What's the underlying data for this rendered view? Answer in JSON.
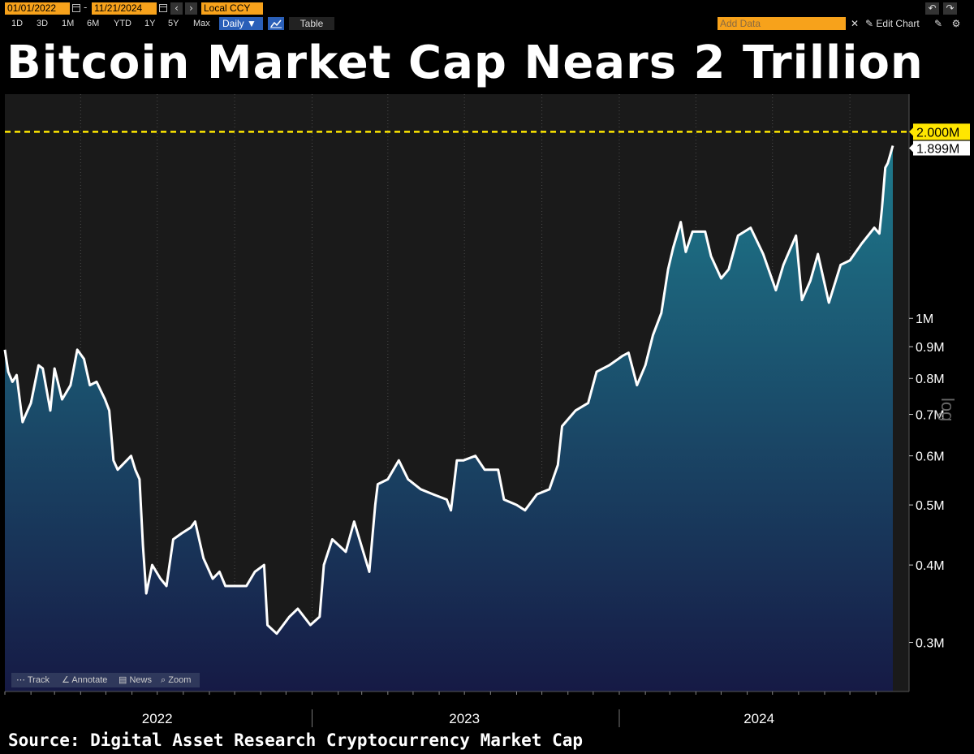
{
  "toolbar": {
    "start_date": "01/01/2022",
    "end_date": "11/21/2024",
    "date_separator": "-",
    "currency": "Local CCY",
    "ranges": [
      "1D",
      "3D",
      "1M",
      "6M",
      "YTD",
      "1Y",
      "5Y",
      "Max"
    ],
    "frequency": "Daily ▼",
    "table_label": "Table",
    "add_data_placeholder": "Add Data",
    "edit_chart_label": "Edit Chart",
    "prev_icon": "‹",
    "next_icon": "›",
    "undo_icon": "↶",
    "redo_icon": "↷",
    "pencil_icon": "✎",
    "gear_icon": "⚙"
  },
  "headline": "Bitcoin Market Cap Nears 2 Trillion",
  "bottom_tools": [
    "Track",
    "Annotate",
    "News",
    "Zoom"
  ],
  "source": "Source: Digital Asset Research Cryptocurrency Market Cap",
  "colors": {
    "line": "#ffffff",
    "fill_top": "#1e7a8c",
    "fill_bottom": "#161a45",
    "reference_line": "#ffe600",
    "toolbar_accent": "#f7a21b",
    "plot_bg": "#1a1a1a"
  },
  "chart_data": {
    "type": "area",
    "title": "Bitcoin Market Cap Nears 2 Trillion",
    "y_scale": "log",
    "ylim": [
      0.25,
      2.3
    ],
    "y_ticks": [
      {
        "value": 1.0,
        "label": "1M"
      },
      {
        "value": 0.9,
        "label": "0.9M"
      },
      {
        "value": 0.8,
        "label": "0.8M"
      },
      {
        "value": 0.7,
        "label": "0.7M"
      },
      {
        "value": 0.6,
        "label": "0.6M"
      },
      {
        "value": 0.5,
        "label": "0.5M"
      },
      {
        "value": 0.4,
        "label": "0.4M"
      },
      {
        "value": 0.3,
        "label": "0.3M"
      }
    ],
    "xlim": [
      "2022-01-01",
      "2024-11-21"
    ],
    "x_labels": [
      {
        "date": "2022-07-01",
        "label": "2022"
      },
      {
        "date": "2023-07-01",
        "label": "2023"
      },
      {
        "date": "2024-06-15",
        "label": "2024"
      }
    ],
    "x_dividers": [
      "2023-01-01",
      "2024-01-01"
    ],
    "grid": true,
    "reference_line": {
      "value": 2.0,
      "label": "2.000M"
    },
    "last_value": {
      "value": 1.899,
      "label": "1.899M"
    },
    "series": [
      {
        "values": [
          [
            "2022-01-01",
            0.89
          ],
          [
            "2022-01-05",
            0.82
          ],
          [
            "2022-01-10",
            0.79
          ],
          [
            "2022-01-15",
            0.81
          ],
          [
            "2022-01-22",
            0.68
          ],
          [
            "2022-01-26",
            0.7
          ],
          [
            "2022-02-01",
            0.73
          ],
          [
            "2022-02-10",
            0.84
          ],
          [
            "2022-02-15",
            0.83
          ],
          [
            "2022-02-24",
            0.71
          ],
          [
            "2022-03-01",
            0.83
          ],
          [
            "2022-03-10",
            0.74
          ],
          [
            "2022-03-20",
            0.78
          ],
          [
            "2022-03-28",
            0.89
          ],
          [
            "2022-04-05",
            0.86
          ],
          [
            "2022-04-12",
            0.78
          ],
          [
            "2022-04-20",
            0.79
          ],
          [
            "2022-04-30",
            0.74
          ],
          [
            "2022-05-05",
            0.71
          ],
          [
            "2022-05-10",
            0.59
          ],
          [
            "2022-05-15",
            0.57
          ],
          [
            "2022-05-31",
            0.6
          ],
          [
            "2022-06-05",
            0.57
          ],
          [
            "2022-06-10",
            0.55
          ],
          [
            "2022-06-14",
            0.43
          ],
          [
            "2022-06-18",
            0.36
          ],
          [
            "2022-06-25",
            0.4
          ],
          [
            "2022-07-05",
            0.38
          ],
          [
            "2022-07-12",
            0.37
          ],
          [
            "2022-07-20",
            0.44
          ],
          [
            "2022-07-30",
            0.45
          ],
          [
            "2022-08-10",
            0.46
          ],
          [
            "2022-08-15",
            0.47
          ],
          [
            "2022-08-25",
            0.41
          ],
          [
            "2022-09-05",
            0.38
          ],
          [
            "2022-09-13",
            0.39
          ],
          [
            "2022-09-20",
            0.37
          ],
          [
            "2022-10-01",
            0.37
          ],
          [
            "2022-10-15",
            0.37
          ],
          [
            "2022-10-25",
            0.39
          ],
          [
            "2022-11-05",
            0.4
          ],
          [
            "2022-11-09",
            0.32
          ],
          [
            "2022-11-20",
            0.31
          ],
          [
            "2022-12-05",
            0.33
          ],
          [
            "2022-12-15",
            0.34
          ],
          [
            "2022-12-30",
            0.32
          ],
          [
            "2023-01-10",
            0.33
          ],
          [
            "2023-01-15",
            0.4
          ],
          [
            "2023-01-25",
            0.44
          ],
          [
            "2023-02-10",
            0.42
          ],
          [
            "2023-02-20",
            0.47
          ],
          [
            "2023-03-10",
            0.39
          ],
          [
            "2023-03-17",
            0.5
          ],
          [
            "2023-03-20",
            0.54
          ],
          [
            "2023-04-01",
            0.55
          ],
          [
            "2023-04-14",
            0.59
          ],
          [
            "2023-04-25",
            0.55
          ],
          [
            "2023-05-10",
            0.53
          ],
          [
            "2023-05-25",
            0.52
          ],
          [
            "2023-06-10",
            0.51
          ],
          [
            "2023-06-15",
            0.49
          ],
          [
            "2023-06-22",
            0.59
          ],
          [
            "2023-06-30",
            0.59
          ],
          [
            "2023-07-14",
            0.6
          ],
          [
            "2023-07-25",
            0.57
          ],
          [
            "2023-08-10",
            0.57
          ],
          [
            "2023-08-17",
            0.51
          ],
          [
            "2023-09-01",
            0.5
          ],
          [
            "2023-09-11",
            0.49
          ],
          [
            "2023-09-25",
            0.52
          ],
          [
            "2023-10-10",
            0.53
          ],
          [
            "2023-10-20",
            0.58
          ],
          [
            "2023-10-25",
            0.67
          ],
          [
            "2023-11-10",
            0.71
          ],
          [
            "2023-11-25",
            0.73
          ],
          [
            "2023-12-05",
            0.82
          ],
          [
            "2023-12-20",
            0.84
          ],
          [
            "2024-01-05",
            0.87
          ],
          [
            "2024-01-12",
            0.88
          ],
          [
            "2024-01-22",
            0.78
          ],
          [
            "2024-02-01",
            0.84
          ],
          [
            "2024-02-10",
            0.94
          ],
          [
            "2024-02-20",
            1.02
          ],
          [
            "2024-02-28",
            1.2
          ],
          [
            "2024-03-05",
            1.3
          ],
          [
            "2024-03-14",
            1.43
          ],
          [
            "2024-03-20",
            1.28
          ],
          [
            "2024-03-28",
            1.38
          ],
          [
            "2024-04-12",
            1.38
          ],
          [
            "2024-04-19",
            1.26
          ],
          [
            "2024-05-01",
            1.16
          ],
          [
            "2024-05-10",
            1.2
          ],
          [
            "2024-05-21",
            1.36
          ],
          [
            "2024-06-05",
            1.4
          ],
          [
            "2024-06-20",
            1.27
          ],
          [
            "2024-07-05",
            1.11
          ],
          [
            "2024-07-14",
            1.22
          ],
          [
            "2024-07-29",
            1.36
          ],
          [
            "2024-08-05",
            1.07
          ],
          [
            "2024-08-15",
            1.15
          ],
          [
            "2024-08-24",
            1.27
          ],
          [
            "2024-09-06",
            1.06
          ],
          [
            "2024-09-20",
            1.22
          ],
          [
            "2024-10-01",
            1.24
          ],
          [
            "2024-10-15",
            1.32
          ],
          [
            "2024-10-30",
            1.4
          ],
          [
            "2024-11-05",
            1.37
          ],
          [
            "2024-11-08",
            1.5
          ],
          [
            "2024-11-12",
            1.75
          ],
          [
            "2024-11-15",
            1.78
          ],
          [
            "2024-11-21",
            1.899
          ]
        ]
      }
    ]
  }
}
